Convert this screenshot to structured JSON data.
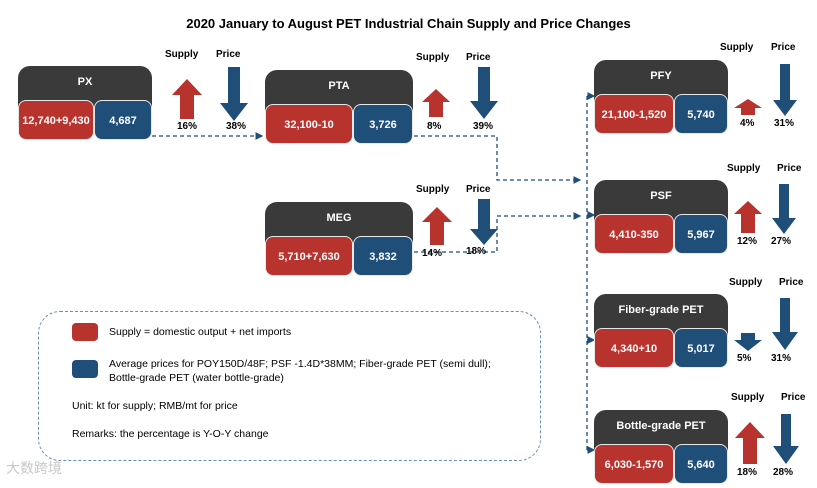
{
  "title": "2020 January to August PET Industrial Chain Supply and Price Changes",
  "column_labels": {
    "supply": "Supply",
    "price": "Price"
  },
  "colors": {
    "supply": "#b8332e",
    "price": "#1f4e79",
    "header": "#3a3a3a"
  },
  "nodes": {
    "px": {
      "name": "PX",
      "supply": "12,740+9,430",
      "price": "4,687",
      "supply_change": "16%",
      "price_change": "38%",
      "supply_dir": "up",
      "price_dir": "down"
    },
    "pta": {
      "name": "PTA",
      "supply": "32,100-10",
      "price": "3,726",
      "supply_change": "8%",
      "price_change": "39%",
      "supply_dir": "up",
      "price_dir": "down"
    },
    "meg": {
      "name": "MEG",
      "supply": "5,710+7,630",
      "price": "3,832",
      "supply_change": "14%",
      "price_change": "18%",
      "supply_dir": "up",
      "price_dir": "down"
    },
    "pfy": {
      "name": "PFY",
      "supply": "21,100-1,520",
      "price": "5,740",
      "supply_change": "4%",
      "price_change": "31%",
      "supply_dir": "up",
      "price_dir": "down"
    },
    "psf": {
      "name": "PSF",
      "supply": "4,410-350",
      "price": "5,967",
      "supply_change": "12%",
      "price_change": "27%",
      "supply_dir": "up",
      "price_dir": "down"
    },
    "fiber": {
      "name": "Fiber-grade PET",
      "supply": "4,340+10",
      "price": "5,017",
      "supply_change": "5%",
      "price_change": "31%",
      "supply_dir": "down",
      "price_dir": "down"
    },
    "bottle": {
      "name": "Bottle-grade PET",
      "supply": "6,030-1,570",
      "price": "5,640",
      "supply_change": "18%",
      "price_change": "28%",
      "supply_dir": "up",
      "price_dir": "down"
    }
  },
  "legend": {
    "supply_text": "Supply = domestic output + net imports",
    "price_text_1": "Average prices for POY150D/48F; PSF -1.4D*38MM; Fiber-grade PET (semi dull);",
    "price_text_2": "Bottle-grade PET (water bottle-grade)",
    "unit": "Unit: kt for supply; RMB/mt for price",
    "remarks": "Remarks: the percentage is Y-O-Y change"
  },
  "watermark": "大数跨境"
}
